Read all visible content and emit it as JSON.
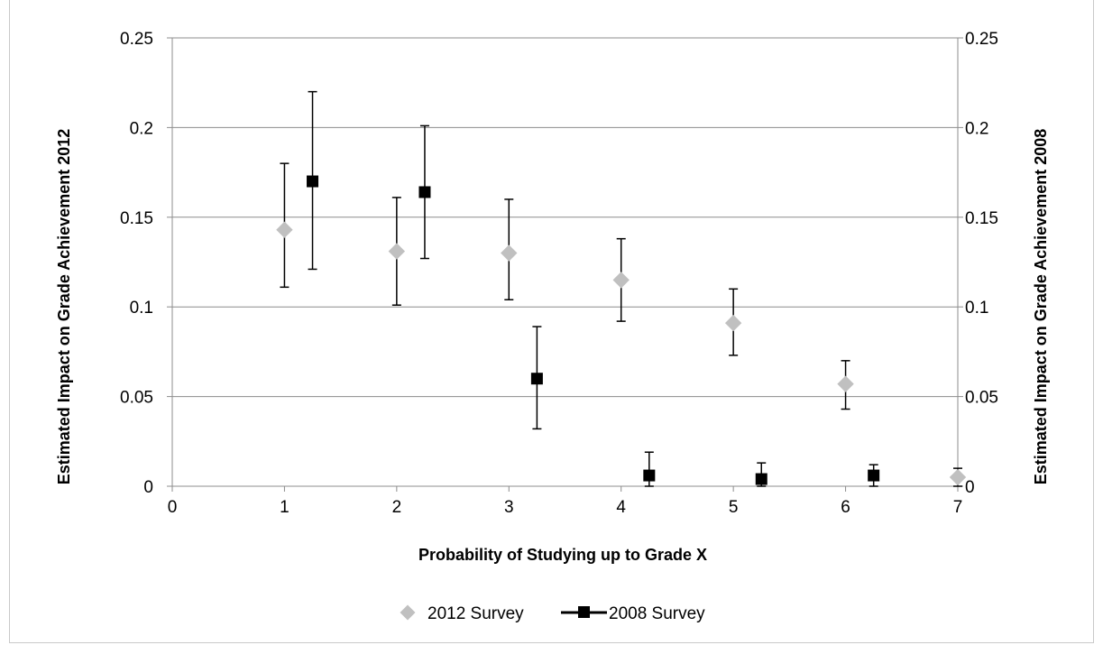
{
  "chart_data": {
    "type": "scatter",
    "title": "",
    "xlabel": "Probability of Studying up to Grade X",
    "ylabel_left": "Estimated Impact on Grade Achievement 2012",
    "ylabel_right": "Estimated Impact on Grade Achievement 2008",
    "xlim": [
      0,
      7
    ],
    "ylim_left": [
      0,
      0.25
    ],
    "ylim_right": [
      0,
      0.25
    ],
    "x_ticks": [
      "0",
      "1",
      "2",
      "3",
      "4",
      "5",
      "6",
      "7"
    ],
    "y_ticks_left": [
      "0",
      "0.05",
      "0.1",
      "0.15",
      "0.2",
      "0.25"
    ],
    "y_ticks_right": [
      "0",
      "0.05",
      "0.1",
      "0.15",
      "0.2",
      "0.25"
    ],
    "grid": "horizontal",
    "legend_position": "bottom",
    "series": [
      {
        "name": "2012 Survey",
        "marker": "diamond",
        "color": "#c0c0c0",
        "axis": "left",
        "points": [
          {
            "x": 1,
            "y": 0.143,
            "low": 0.111,
            "high": 0.18
          },
          {
            "x": 2,
            "y": 0.131,
            "low": 0.101,
            "high": 0.161
          },
          {
            "x": 3,
            "y": 0.13,
            "low": 0.104,
            "high": 0.16
          },
          {
            "x": 4,
            "y": 0.115,
            "low": 0.092,
            "high": 0.138
          },
          {
            "x": 5,
            "y": 0.091,
            "low": 0.073,
            "high": 0.11
          },
          {
            "x": 6,
            "y": 0.057,
            "low": 0.043,
            "high": 0.07
          },
          {
            "x": 7,
            "y": 0.005,
            "low": 0.0,
            "high": 0.01
          }
        ]
      },
      {
        "name": "2008 Survey",
        "marker": "square",
        "color": "#000000",
        "axis": "right",
        "points": [
          {
            "x": 1.25,
            "y": 0.17,
            "low": 0.121,
            "high": 0.22
          },
          {
            "x": 2.25,
            "y": 0.164,
            "low": 0.127,
            "high": 0.201
          },
          {
            "x": 3.25,
            "y": 0.06,
            "low": 0.032,
            "high": 0.089
          },
          {
            "x": 4.25,
            "y": 0.006,
            "low": 0.0,
            "high": 0.019
          },
          {
            "x": 5.25,
            "y": 0.004,
            "low": 0.0,
            "high": 0.013
          },
          {
            "x": 6.25,
            "y": 0.006,
            "low": 0.0,
            "high": 0.012
          }
        ]
      }
    ]
  }
}
